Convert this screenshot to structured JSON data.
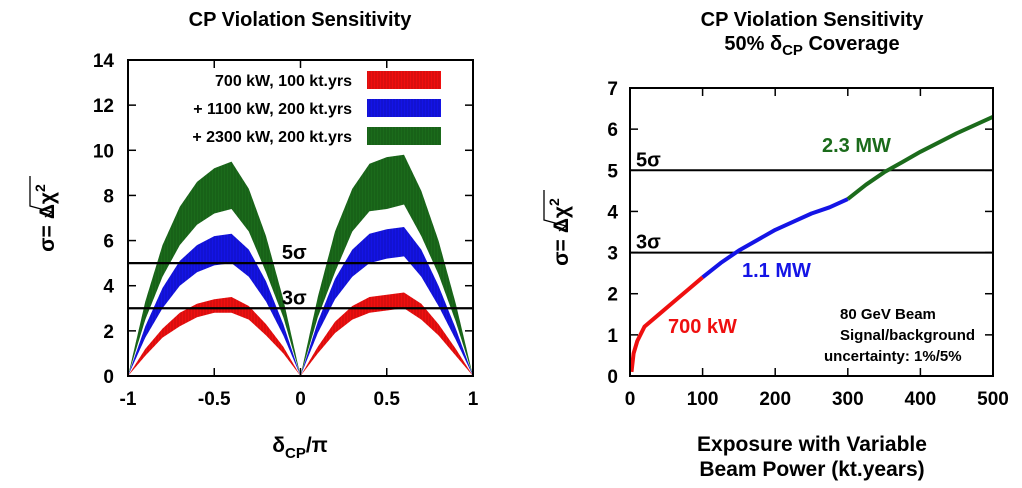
{
  "chart_data": [
    {
      "type": "area",
      "title": "CP Violation Sensitivity",
      "xlabel_main": "δ",
      "xlabel_sub": "CP",
      "xlabel_tail": "/π",
      "ylabel_prefix": "σ=",
      "ylabel_root": "Δχ",
      "ylabel_exp": "2",
      "xlim": [
        -1,
        1
      ],
      "ylim": [
        0,
        14
      ],
      "x_ticks": [
        -1,
        -0.5,
        0,
        0.5,
        1
      ],
      "x_tick_labels": [
        "-1",
        "-0.5",
        "0",
        "0.5",
        "1"
      ],
      "y_ticks": [
        0,
        2,
        4,
        6,
        8,
        10,
        12,
        14
      ],
      "y_tick_labels": [
        "0",
        "2",
        "4",
        "6",
        "8",
        "10",
        "12",
        "14"
      ],
      "legend_position": "top-right",
      "series": [
        {
          "name": "+ 2300 kW, 200 kt.yrs",
          "color": "#1b6b1b",
          "x": [
            -1,
            -0.9,
            -0.8,
            -0.7,
            -0.6,
            -0.5,
            -0.4,
            -0.3,
            -0.2,
            -0.1,
            0,
            0.1,
            0.2,
            0.3,
            0.4,
            0.5,
            0.6,
            0.7,
            0.8,
            0.9,
            1
          ],
          "upper": [
            0,
            3.3,
            5.8,
            7.5,
            8.6,
            9.2,
            9.5,
            8.3,
            6.2,
            3.4,
            0,
            3.5,
            6.4,
            8.3,
            9.4,
            9.7,
            9.8,
            8.2,
            6.0,
            3.2,
            0
          ],
          "lower": [
            0,
            2.5,
            4.4,
            5.8,
            6.7,
            7.2,
            7.4,
            6.4,
            4.6,
            2.6,
            0,
            2.6,
            4.6,
            6.4,
            7.3,
            7.4,
            7.6,
            6.2,
            4.5,
            2.4,
            0
          ]
        },
        {
          "name": "+ 1100 kW, 200 kt.yrs",
          "color": "#1414e6",
          "x": [
            -1,
            -0.9,
            -0.8,
            -0.7,
            -0.6,
            -0.5,
            -0.4,
            -0.3,
            -0.2,
            -0.1,
            0,
            0.1,
            0.2,
            0.3,
            0.4,
            0.5,
            0.6,
            0.7,
            0.8,
            0.9,
            1
          ],
          "upper": [
            0,
            2.2,
            3.9,
            5.1,
            5.8,
            6.2,
            6.3,
            5.6,
            4.2,
            2.3,
            0,
            2.4,
            4.3,
            5.6,
            6.3,
            6.5,
            6.6,
            5.6,
            4.0,
            2.1,
            0
          ],
          "lower": [
            0,
            1.7,
            3.0,
            4.0,
            4.6,
            4.9,
            5.0,
            4.4,
            3.3,
            1.8,
            0,
            1.9,
            3.4,
            4.4,
            5.0,
            5.2,
            5.3,
            4.4,
            3.1,
            1.6,
            0
          ]
        },
        {
          "name": "700 kW, 100 kt.yrs",
          "color": "#ef0f0f",
          "x": [
            -1,
            -0.9,
            -0.8,
            -0.7,
            -0.6,
            -0.5,
            -0.4,
            -0.3,
            -0.2,
            -0.1,
            0,
            0.1,
            0.2,
            0.3,
            0.4,
            0.5,
            0.6,
            0.7,
            0.8,
            0.9,
            1
          ],
          "upper": [
            0,
            1.2,
            2.1,
            2.8,
            3.2,
            3.4,
            3.5,
            3.1,
            2.3,
            1.3,
            0,
            1.3,
            2.4,
            3.1,
            3.5,
            3.6,
            3.7,
            3.2,
            2.3,
            1.2,
            0
          ],
          "lower": [
            0,
            0.9,
            1.7,
            2.2,
            2.6,
            2.8,
            2.8,
            2.5,
            1.8,
            1.0,
            0,
            1.0,
            1.9,
            2.5,
            2.8,
            2.9,
            3.0,
            2.5,
            1.8,
            0.9,
            0
          ]
        }
      ],
      "thresholds": [
        {
          "value": 5,
          "label": "5σ"
        },
        {
          "value": 3,
          "label": "3σ"
        }
      ]
    },
    {
      "type": "line",
      "title": "CP Violation Sensitivity",
      "title_line2_prefix": "50% δ",
      "title_line2_sub": "CP",
      "title_line2_suffix": " Coverage",
      "xlabel_line1": "Exposure with Variable",
      "xlabel_line2": "Beam Power (kt.years)",
      "ylabel_prefix": "σ=",
      "ylabel_root": "Δχ",
      "ylabel_exp": "2",
      "xlim": [
        0,
        500
      ],
      "ylim": [
        0,
        7
      ],
      "x_ticks": [
        0,
        100,
        200,
        300,
        400,
        500
      ],
      "x_tick_labels": [
        "0",
        "100",
        "200",
        "300",
        "400",
        "500"
      ],
      "y_ticks": [
        0,
        1,
        2,
        3,
        4,
        5,
        6,
        7
      ],
      "y_tick_labels": [
        "0",
        "1",
        "2",
        "3",
        "4",
        "5",
        "6",
        "7"
      ],
      "series": [
        {
          "name": "700 kW",
          "color": "#ef0f0f",
          "x": [
            2,
            5,
            10,
            20,
            40,
            60,
            80,
            100
          ],
          "y": [
            0.1,
            0.55,
            0.85,
            1.2,
            1.5,
            1.8,
            2.1,
            2.4
          ]
        },
        {
          "name": "1.1 MW",
          "color": "#1414e6",
          "x": [
            100,
            125,
            150,
            175,
            200,
            225,
            250,
            275,
            300
          ],
          "y": [
            2.4,
            2.75,
            3.05,
            3.3,
            3.55,
            3.75,
            3.95,
            4.1,
            4.3
          ]
        },
        {
          "name": "2.3 MW",
          "color": "#1b6b1b",
          "x": [
            300,
            325,
            350,
            375,
            400,
            450,
            500
          ],
          "y": [
            4.3,
            4.65,
            4.95,
            5.2,
            5.45,
            5.9,
            6.3
          ]
        }
      ],
      "thresholds": [
        {
          "value": 5,
          "label": "5σ"
        },
        {
          "value": 3,
          "label": "3σ"
        }
      ],
      "annotation": [
        "80 GeV Beam",
        "Signal/background",
        "uncertainty: 1%/5%"
      ]
    }
  ]
}
